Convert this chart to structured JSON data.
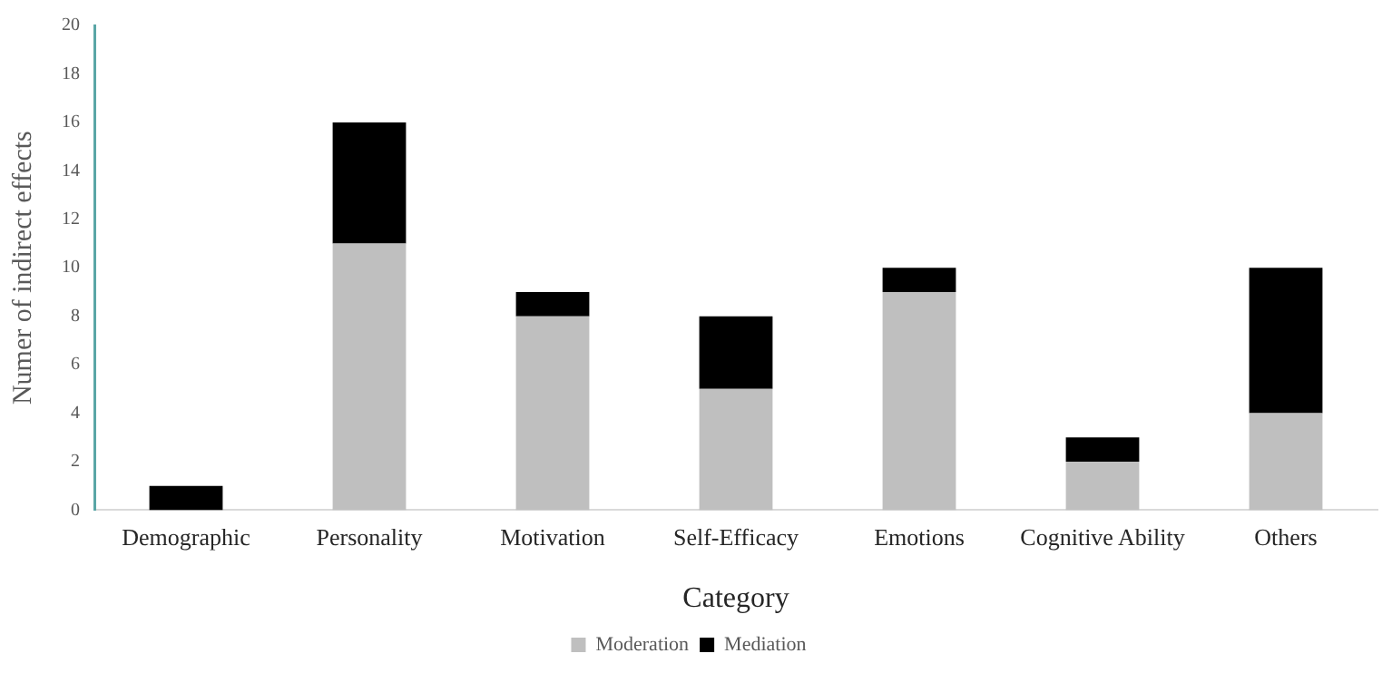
{
  "chart_data": {
    "type": "bar",
    "stacked": true,
    "xlabel": "Category",
    "ylabel": "Numer of indirect effects",
    "categories": [
      "Demographic",
      "Personality",
      "Motivation",
      "Self-Efficacy",
      "Emotions",
      "Cognitive Ability",
      "Others"
    ],
    "series": [
      {
        "name": "Moderation",
        "color": "#bfbfbf",
        "values": [
          0,
          11,
          8,
          5,
          9,
          2,
          4
        ]
      },
      {
        "name": "Mediation",
        "color": "#000000",
        "values": [
          1,
          5,
          1,
          3,
          1,
          1,
          6
        ]
      }
    ],
    "ylim": [
      0,
      20
    ],
    "yticks": [
      0,
      2,
      4,
      6,
      8,
      10,
      12,
      14,
      16,
      18,
      20
    ],
    "grid": false,
    "legend": "bottom"
  }
}
